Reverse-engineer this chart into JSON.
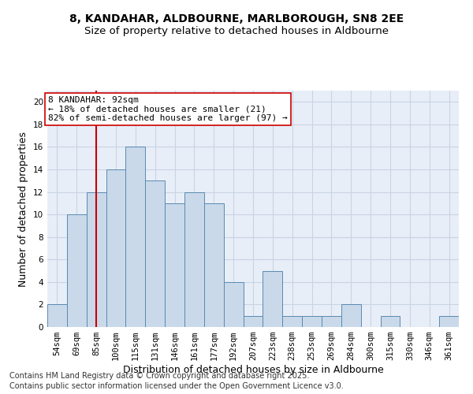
{
  "title_line1": "8, KANDAHAR, ALDBOURNE, MARLBOROUGH, SN8 2EE",
  "title_line2": "Size of property relative to detached houses in Aldbourne",
  "xlabel": "Distribution of detached houses by size in Aldbourne",
  "ylabel": "Number of detached properties",
  "bin_labels": [
    "54sqm",
    "69sqm",
    "85sqm",
    "100sqm",
    "115sqm",
    "131sqm",
    "146sqm",
    "161sqm",
    "177sqm",
    "192sqm",
    "207sqm",
    "223sqm",
    "238sqm",
    "253sqm",
    "269sqm",
    "284sqm",
    "300sqm",
    "315sqm",
    "330sqm",
    "346sqm",
    "361sqm"
  ],
  "bar_values": [
    2,
    10,
    12,
    14,
    16,
    13,
    11,
    12,
    11,
    4,
    1,
    5,
    1,
    1,
    1,
    2,
    0,
    1,
    0,
    0,
    1
  ],
  "bar_color": "#c9d9ea",
  "bar_edge_color": "#5a8ab0",
  "grid_color": "#c8d4e4",
  "background_color": "#e8eef8",
  "vline_x_index": 2.0,
  "vline_color": "#cc0000",
  "annotation_text": "8 KANDAHAR: 92sqm\n← 18% of detached houses are smaller (21)\n82% of semi-detached houses are larger (97) →",
  "annotation_box_color": "#ffffff",
  "annotation_box_edge": "#cc0000",
  "ylim": [
    0,
    21
  ],
  "yticks": [
    0,
    2,
    4,
    6,
    8,
    10,
    12,
    14,
    16,
    18,
    20
  ],
  "footnote1": "Contains HM Land Registry data © Crown copyright and database right 2025.",
  "footnote2": "Contains public sector information licensed under the Open Government Licence v3.0.",
  "title_fontsize": 10,
  "subtitle_fontsize": 9.5,
  "axis_label_fontsize": 9,
  "tick_fontsize": 7.5,
  "annotation_fontsize": 8,
  "footnote_fontsize": 7
}
